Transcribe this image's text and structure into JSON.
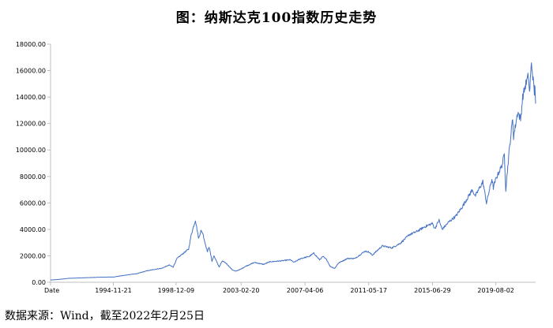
{
  "title": "图：纳斯达克100指数历史走势",
  "source_text": "数据来源：Wind，截至2022年2月25日",
  "colors": {
    "line": "#4472c4",
    "axis": "#bfbfbf",
    "text": "#000000"
  },
  "chart_data": {
    "type": "line",
    "title": "图：纳斯达克100指数历史走势",
    "xlabel": "Date",
    "ylabel": "",
    "x_range": [
      "1990-11-01",
      "2022-02-25"
    ],
    "ylim": [
      0,
      18000
    ],
    "yticks": [
      "0.00",
      "2000.00",
      "4000.00",
      "6000.00",
      "8000.00",
      "10000.00",
      "12000.00",
      "14000.00",
      "16000.00",
      "18000.00"
    ],
    "xtick_labels": [
      "Date",
      "1994-11-21",
      "1998-12-09",
      "2003-02-20",
      "2007-04-06",
      "2011-05-17",
      "2015-06-29",
      "2019-08-02"
    ],
    "xtick_dates": [
      "1990-11-01",
      "1994-11-21",
      "1998-12-09",
      "2003-02-20",
      "2007-04-06",
      "2011-05-17",
      "2015-06-29",
      "2019-08-02"
    ],
    "grid": false,
    "series": [
      {
        "name": "",
        "x": [
          "1990-11-01",
          "1991-06-01",
          "1992-01-01",
          "1993-01-01",
          "1994-01-01",
          "1994-12-01",
          "1995-12-01",
          "1996-06-01",
          "1997-01-01",
          "1997-09-01",
          "1998-01-01",
          "1998-07-01",
          "1998-10-01",
          "1999-01-01",
          "1999-06-01",
          "1999-10-01",
          "1999-12-01",
          "2000-03-10",
          "2000-05-24",
          "2000-07-15",
          "2000-09-01",
          "2000-10-20",
          "2000-12-20",
          "2001-01-25",
          "2001-04-04",
          "2001-05-20",
          "2001-09-21",
          "2001-12-01",
          "2002-03-01",
          "2002-07-23",
          "2002-10-09",
          "2003-02-20",
          "2003-06-01",
          "2004-01-01",
          "2004-08-01",
          "2005-01-01",
          "2005-08-01",
          "2006-05-01",
          "2006-07-15",
          "2007-01-01",
          "2007-07-15",
          "2007-10-31",
          "2008-03-15",
          "2008-06-01",
          "2008-09-01",
          "2008-11-20",
          "2009-03-09",
          "2009-06-01",
          "2010-01-01",
          "2010-07-01",
          "2011-02-15",
          "2011-05-17",
          "2011-08-10",
          "2012-04-01",
          "2012-11-15",
          "2013-06-01",
          "2014-01-01",
          "2014-06-01",
          "2015-01-01",
          "2015-06-29",
          "2015-08-25",
          "2015-12-01",
          "2016-02-11",
          "2016-08-01",
          "2017-01-01",
          "2017-06-01",
          "2018-01-26",
          "2018-04-01",
          "2018-10-01",
          "2018-12-24",
          "2019-05-01",
          "2019-06-03",
          "2019-08-02",
          "2019-12-31",
          "2020-02-19",
          "2020-03-23",
          "2020-06-08",
          "2020-09-02",
          "2020-09-23",
          "2020-12-31",
          "2021-03-08",
          "2021-04-26",
          "2021-07-01",
          "2021-09-07",
          "2021-10-04",
          "2021-11-19",
          "2022-01-27",
          "2022-02-10",
          "2022-02-25"
        ],
        "values": [
          170,
          220,
          300,
          340,
          380,
          400,
          580,
          650,
          850,
          1000,
          1050,
          1300,
          1150,
          1800,
          2200,
          2500,
          3600,
          4700,
          3300,
          3900,
          3700,
          3000,
          2300,
          2700,
          1600,
          2000,
          1150,
          1600,
          1450,
          950,
          830,
          1000,
          1200,
          1500,
          1350,
          1550,
          1600,
          1700,
          1500,
          1800,
          1950,
          2200,
          1700,
          1950,
          1700,
          1200,
          1050,
          1450,
          1800,
          1800,
          2350,
          2300,
          2050,
          2750,
          2600,
          2950,
          3600,
          3800,
          4200,
          4450,
          4050,
          4700,
          4000,
          4600,
          5000,
          5700,
          7000,
          6500,
          7600,
          6000,
          7800,
          7150,
          7800,
          8900,
          9700,
          7000,
          9800,
          12400,
          11000,
          12900,
          12300,
          14000,
          14900,
          15600,
          14300,
          16600,
          14300,
          15000,
          13500
        ]
      }
    ]
  }
}
